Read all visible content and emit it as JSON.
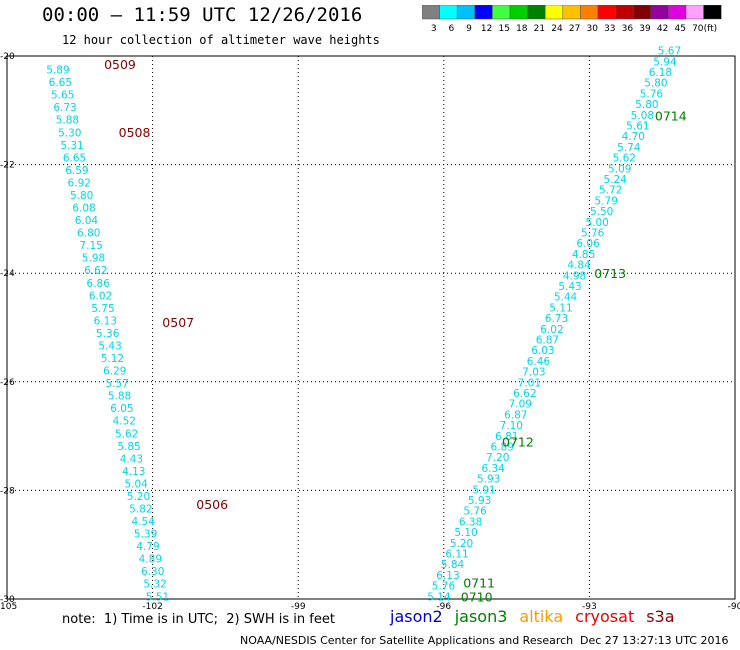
{
  "header": {
    "title": "00:00 – 11:59 UTC 12/26/2016",
    "subtitle": "12 hour collection of altimeter wave heights"
  },
  "colorbar": {
    "labels": [
      "3",
      "6",
      "9",
      "12",
      "15",
      "18",
      "21",
      "24",
      "27",
      "30",
      "33",
      "36",
      "39",
      "42",
      "45",
      "70",
      "(ft)"
    ],
    "colors": [
      "#808080",
      "#00ffff",
      "#00bfff",
      "#0000ff",
      "#40ff40",
      "#00d000",
      "#008000",
      "#ffff00",
      "#ffc000",
      "#ff8000",
      "#ff0000",
      "#c00000",
      "#800000",
      "#9400a0",
      "#e000e0",
      "#ffa0ff",
      "#000000"
    ]
  },
  "footer": {
    "note": "note:  1) Time is in UTC;  2) SWH is in feet",
    "credit": "NOAA/NESDIS Center for Satellite Applications and Research",
    "stamp": "Dec 27 13:27:13 UTC 2016"
  },
  "legend": [
    {
      "name": "jason2",
      "color": "#0000cc"
    },
    {
      "name": "jason3",
      "color": "#008000"
    },
    {
      "name": "altika",
      "color": "#ff9900"
    },
    {
      "name": "cryosat",
      "color": "#ee0000"
    },
    {
      "name": "s3a",
      "color": "#8b0000"
    }
  ],
  "chart_data": {
    "type": "scatter",
    "title": "12 hour collection of altimeter wave heights",
    "xlim": [
      -105,
      -90
    ],
    "ylim": [
      -30,
      -20
    ],
    "xticks": [
      "-105",
      "-102",
      "-99",
      "-96",
      "-93",
      "-90"
    ],
    "yticks": [
      "-20",
      "-22",
      "-24",
      "-26",
      "-28",
      "-30"
    ],
    "grid": true,
    "units": "ft",
    "point_color": "#00d8e8",
    "tracks": [
      {
        "satellite": "s3a",
        "start": [
          -103.95,
          -20.25
        ],
        "end": [
          -101.9,
          -29.95
        ],
        "values": [
          "5.89",
          "6.65",
          "5.65",
          "6.73",
          "5.88",
          "5.30",
          "5.31",
          "6.65",
          "6.59",
          "6.92",
          "5.80",
          "6.08",
          "6.04",
          "6.80",
          "7.15",
          "5.98",
          "6.62",
          "6.86",
          "6.02",
          "5.75",
          "6.13",
          "5.36",
          "5.43",
          "5.12",
          "6.29",
          "5.57",
          "5.88",
          "6.05",
          "4.52",
          "5.62",
          "5.85",
          "4.43",
          "4.13",
          "5.04",
          "5.20",
          "5.82",
          "4.54",
          "5.39",
          "4.79",
          "4.89",
          "6.30",
          "5.32",
          "5.51"
        ]
      },
      {
        "satellite": "jason3",
        "start": [
          -91.35,
          -19.9
        ],
        "end": [
          -96.1,
          -29.95
        ],
        "values": [
          "5.67",
          "5.94",
          "6.18",
          "5.80",
          "5.76",
          "5.80",
          "5.08",
          "5.61",
          "4.70",
          "5.74",
          "5.62",
          "5.09",
          "5.24",
          "5.72",
          "5.79",
          "5.50",
          "5.00",
          "5.76",
          "6.06",
          "4.85",
          "4.84",
          "4.98",
          "5.43",
          "5.44",
          "5.11",
          "6.73",
          "6.02",
          "6.87",
          "6.03",
          "6.46",
          "7.03",
          "7.01",
          "6.62",
          "7.09",
          "6.87",
          "7.10",
          "6.81",
          "6.89",
          "7.20",
          "6.34",
          "5.93",
          "5.91",
          "5.93",
          "5.76",
          "6.38",
          "5.10",
          "5.20",
          "6.11",
          "5.84",
          "6.13",
          "5.76",
          "5.14"
        ]
      }
    ],
    "time_labels": [
      {
        "text": "0509",
        "x": -103.0,
        "y": -20.15,
        "color": "#8b0000"
      },
      {
        "text": "0508",
        "x": -102.7,
        "y": -21.4,
        "color": "#8b0000"
      },
      {
        "text": "0507",
        "x": -101.8,
        "y": -24.9,
        "color": "#8b0000"
      },
      {
        "text": "0506",
        "x": -101.1,
        "y": -28.25,
        "color": "#8b0000"
      },
      {
        "text": "0714",
        "x": -91.65,
        "y": -21.1,
        "color": "#008000"
      },
      {
        "text": "0713",
        "x": -92.9,
        "y": -24.0,
        "color": "#008000"
      },
      {
        "text": "0712",
        "x": -94.8,
        "y": -27.1,
        "color": "#008000"
      },
      {
        "text": "0711",
        "x": -95.6,
        "y": -29.7,
        "color": "#008000"
      },
      {
        "text": "0710",
        "x": -95.65,
        "y": -29.95,
        "color": "#008000"
      }
    ]
  }
}
